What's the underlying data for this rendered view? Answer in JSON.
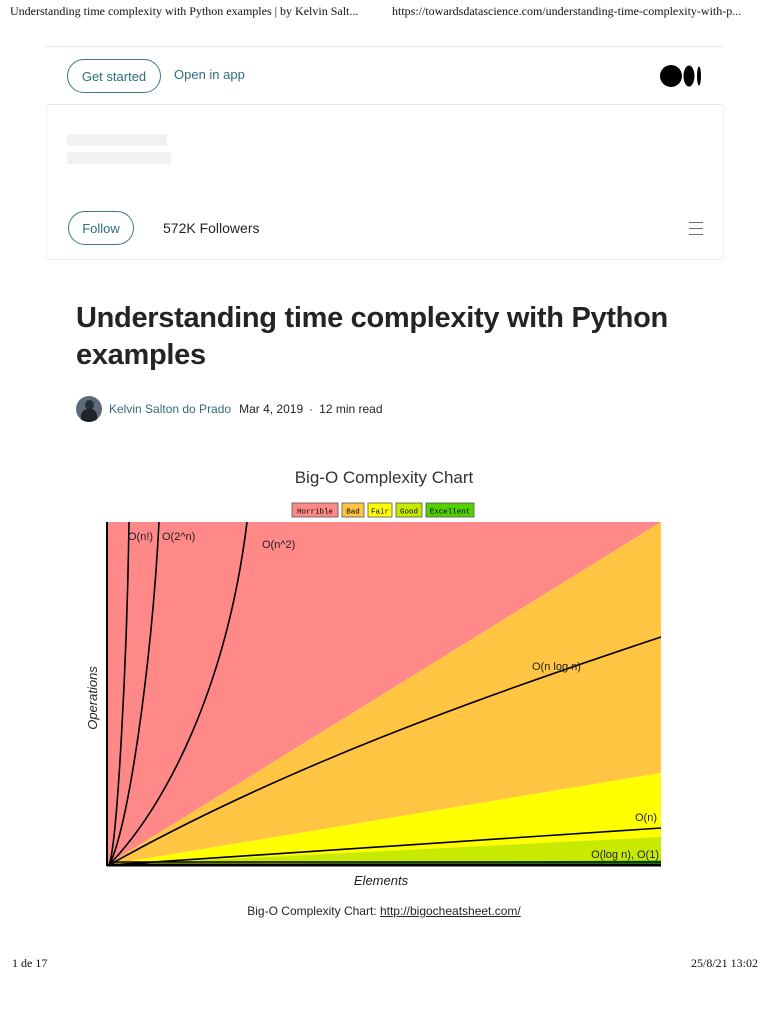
{
  "print_header": {
    "title": "Understanding time complexity with Python examples | by Kelvin Salt...",
    "url": "https://towardsdatascience.com/understanding-time-complexity-with-p..."
  },
  "topbar": {
    "get_started": "Get started",
    "open_in_app": "Open in app",
    "logo_icon": "medium-logo-icon"
  },
  "publication": {
    "follow": "Follow",
    "followers": "572K Followers",
    "menu_icon": "hamburger-menu-icon"
  },
  "article": {
    "title": "Understanding time complexity with Python examples",
    "author": "Kelvin Salton do Prado",
    "date": "Mar 4, 2019",
    "separator": "·",
    "read_time": "12 min read"
  },
  "figure": {
    "caption_text": "Big-O Complexity Chart: ",
    "caption_link": "http://bigocheatsheet.com/"
  },
  "chart_data": {
    "type": "line",
    "title": "Big-O Complexity Chart",
    "xlabel": "Elements",
    "ylabel": "Operations",
    "legend": [
      {
        "label": "Horrible",
        "color": "#ff8989"
      },
      {
        "label": "Bad",
        "color": "#ffc543"
      },
      {
        "label": "Fair",
        "color": "#ffff00"
      },
      {
        "label": "Good",
        "color": "#c8ea00"
      },
      {
        "label": "Excellent",
        "color": "#53d000"
      }
    ],
    "legend_position": "top-center",
    "grid": false,
    "series": [
      {
        "name": "O(n!)"
      },
      {
        "name": "O(2^n)"
      },
      {
        "name": "O(n^2)"
      },
      {
        "name": "O(n log n)"
      },
      {
        "name": "O(n)"
      },
      {
        "name": "O(log n), O(1)"
      }
    ]
  },
  "footer": {
    "page": "1 de 17",
    "date": "25/8/21 13:02"
  }
}
